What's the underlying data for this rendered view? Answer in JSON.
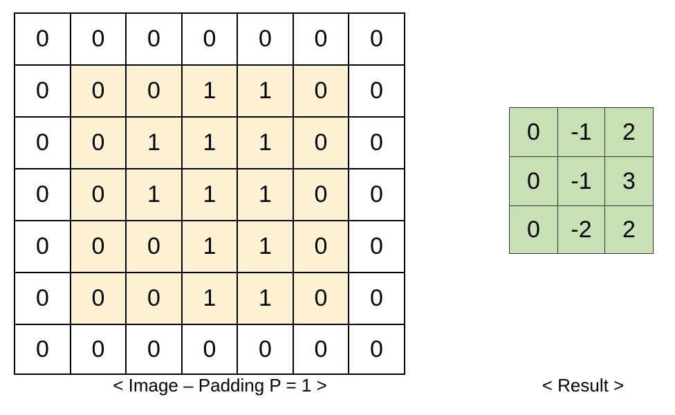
{
  "image": {
    "caption": "< Image – Padding P = 1 >",
    "rows": [
      [
        "0",
        "0",
        "0",
        "0",
        "0",
        "0",
        "0"
      ],
      [
        "0",
        "0",
        "0",
        "1",
        "1",
        "0",
        "0"
      ],
      [
        "0",
        "0",
        "1",
        "1",
        "1",
        "0",
        "0"
      ],
      [
        "0",
        "0",
        "1",
        "1",
        "1",
        "0",
        "0"
      ],
      [
        "0",
        "0",
        "0",
        "1",
        "1",
        "0",
        "0"
      ],
      [
        "0",
        "0",
        "0",
        "1",
        "1",
        "0",
        "0"
      ],
      [
        "0",
        "0",
        "0",
        "0",
        "0",
        "0",
        "0"
      ]
    ],
    "padding": 1,
    "colors": {
      "inner": "#fdf1d4",
      "padding": "#ffffff"
    }
  },
  "result": {
    "caption": "< Result >",
    "rows": [
      [
        "0",
        "-1",
        "2"
      ],
      [
        "0",
        "-1",
        "3"
      ],
      [
        "0",
        "-2",
        "2"
      ]
    ],
    "colors": {
      "cell": "#c9dfb6"
    }
  }
}
